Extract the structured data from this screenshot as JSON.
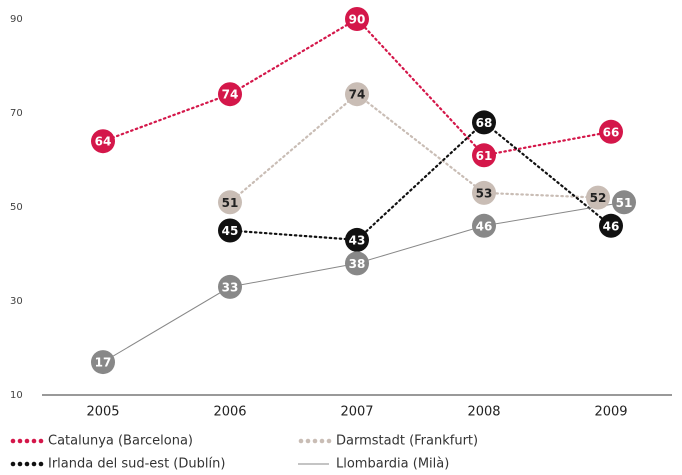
{
  "chart_data": {
    "type": "line",
    "categories": [
      "2005",
      "2006",
      "2007",
      "2008",
      "2009"
    ],
    "series": [
      {
        "name": "Catalunya (Barcelona)",
        "color": "#d4174a",
        "line_style": "dotted",
        "label_color": "#ffffff",
        "values": [
          64,
          74,
          90,
          61,
          66
        ]
      },
      {
        "name": "Darmstadt (Frankfurt)",
        "color": "#c9bdb5",
        "line_style": "dotted",
        "label_color": "#222222",
        "values": [
          null,
          51,
          74,
          53,
          52
        ]
      },
      {
        "name": "Irlanda del sud-est (Dublín)",
        "color": "#111111",
        "line_style": "dotted",
        "label_color": "#ffffff",
        "values": [
          null,
          45,
          43,
          68,
          46
        ]
      },
      {
        "name": "Llombardia (Milà)",
        "color": "#888888",
        "line_style": "solid",
        "label_color": "#ffffff",
        "values": [
          17,
          33,
          38,
          46,
          51
        ]
      }
    ],
    "ylim": [
      10,
      90
    ],
    "yticks": [
      10,
      30,
      50,
      70,
      90
    ],
    "grid": false,
    "legend": "bottom"
  }
}
